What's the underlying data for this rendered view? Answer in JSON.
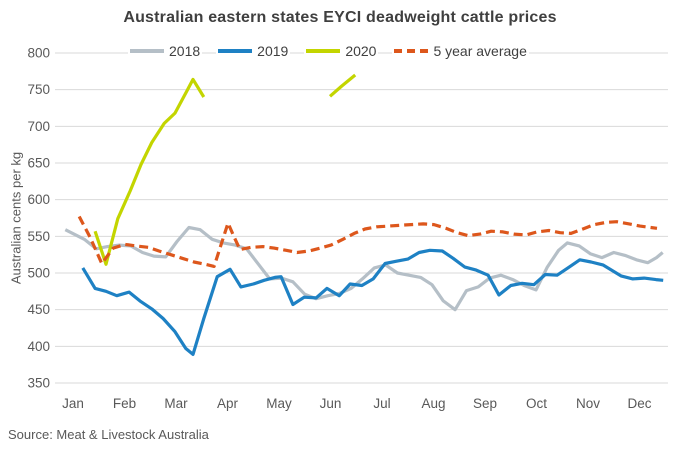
{
  "title": "Australian eastern states EYCI deadweight cattle prices",
  "source": "Source: Meat & Livestock Australia",
  "colors": {
    "series_2018": "#b5bfc7",
    "series_2019": "#1e81c4",
    "series_2020": "#c3d500",
    "five_year_avg": "#dd571c",
    "gridline": "#d9d9d9",
    "axis_text": "#595959",
    "title_text": "#3f3f3f"
  },
  "chart_data": {
    "type": "line",
    "title": "Australian eastern states EYCI deadweight cattle prices",
    "xlabel": "",
    "ylabel": "Australian cents per kg",
    "ylim": [
      350,
      800
    ],
    "yticks": [
      350,
      400,
      450,
      500,
      550,
      600,
      650,
      700,
      750,
      800
    ],
    "xticklabels": [
      "Jan",
      "Feb",
      "Mar",
      "Apr",
      "May",
      "Jun",
      "Jul",
      "Aug",
      "Sep",
      "Oct",
      "Nov",
      "Dec"
    ],
    "grid": "horizontal",
    "legend_position": "top",
    "x_unit": "month index, Jan=0 through Dec=11, weekly resolution",
    "y_unit": "Australian cents per kg",
    "series": [
      {
        "name": "2018",
        "color": "#b5bfc7",
        "dash": "solid",
        "segments": [
          [
            [
              -0.15,
              559
            ],
            [
              0.22,
              546
            ],
            [
              0.45,
              533
            ],
            [
              0.67,
              536
            ],
            [
              0.9,
              538
            ],
            [
              1.12,
              537
            ],
            [
              1.35,
              528
            ],
            [
              1.57,
              523
            ],
            [
              1.8,
              522
            ],
            [
              2.02,
              543
            ],
            [
              2.25,
              562
            ],
            [
              2.47,
              559
            ],
            [
              2.7,
              546
            ],
            [
              2.92,
              541
            ],
            [
              3.15,
              538
            ],
            [
              3.37,
              533
            ],
            [
              3.6,
              512
            ],
            [
              3.82,
              492
            ],
            [
              4.05,
              493
            ],
            [
              4.27,
              488
            ],
            [
              4.5,
              471
            ],
            [
              4.72,
              465
            ],
            [
              4.95,
              469
            ],
            [
              5.17,
              472
            ],
            [
              5.4,
              479
            ],
            [
              5.62,
              492
            ],
            [
              5.85,
              507
            ],
            [
              6.07,
              511
            ],
            [
              6.3,
              500
            ],
            [
              6.52,
              497
            ],
            [
              6.75,
              494
            ],
            [
              6.97,
              484
            ],
            [
              7.19,
              462
            ],
            [
              7.42,
              450
            ],
            [
              7.64,
              476
            ],
            [
              7.87,
              481
            ],
            [
              8.09,
              493
            ],
            [
              8.31,
              497
            ],
            [
              8.54,
              491
            ],
            [
              8.76,
              483
            ],
            [
              8.99,
              477
            ],
            [
              9.21,
              508
            ],
            [
              9.43,
              531
            ],
            [
              9.6,
              541
            ],
            [
              9.83,
              537
            ],
            [
              10.05,
              526
            ],
            [
              10.27,
              521
            ],
            [
              10.5,
              528
            ],
            [
              10.72,
              524
            ],
            [
              10.94,
              518
            ],
            [
              11.16,
              514
            ],
            [
              11.33,
              521
            ],
            [
              11.45,
              528
            ]
          ]
        ]
      },
      {
        "name": "2019",
        "color": "#1e81c4",
        "dash": "solid",
        "segments": [
          [
            [
              0.19,
              507
            ],
            [
              0.43,
              479
            ],
            [
              0.64,
              475
            ],
            [
              0.85,
              469
            ],
            [
              1.09,
              474
            ],
            [
              1.3,
              462
            ],
            [
              1.53,
              451
            ],
            [
              1.75,
              438
            ],
            [
              1.98,
              420
            ],
            [
              2.19,
              397
            ],
            [
              2.33,
              389
            ],
            [
              2.54,
              438
            ],
            [
              2.8,
              495
            ],
            [
              3.05,
              505
            ],
            [
              3.26,
              481
            ],
            [
              3.5,
              485
            ],
            [
              3.71,
              490
            ],
            [
              3.92,
              494
            ],
            [
              4.04,
              495
            ],
            [
              4.27,
              457
            ],
            [
              4.49,
              467
            ],
            [
              4.72,
              466
            ],
            [
              4.93,
              479
            ],
            [
              5.17,
              469
            ],
            [
              5.38,
              485
            ],
            [
              5.61,
              483
            ],
            [
              5.83,
              492
            ],
            [
              6.06,
              513
            ],
            [
              6.27,
              516
            ],
            [
              6.5,
              519
            ],
            [
              6.72,
              528
            ],
            [
              6.93,
              531
            ],
            [
              7.17,
              530
            ],
            [
              7.38,
              520
            ],
            [
              7.61,
              508
            ],
            [
              7.83,
              504
            ],
            [
              8.06,
              497
            ],
            [
              8.27,
              470
            ],
            [
              8.5,
              483
            ],
            [
              8.72,
              486
            ],
            [
              8.95,
              484
            ],
            [
              9.17,
              498
            ],
            [
              9.4,
              497
            ],
            [
              9.61,
              507
            ],
            [
              9.84,
              518
            ],
            [
              10.06,
              515
            ],
            [
              10.29,
              511
            ],
            [
              10.5,
              502
            ],
            [
              10.64,
              496
            ],
            [
              10.87,
              492
            ],
            [
              11.09,
              493
            ],
            [
              11.32,
              491
            ],
            [
              11.46,
              490
            ]
          ]
        ]
      },
      {
        "name": "2020",
        "color": "#c3d500",
        "dash": "solid",
        "segments": [
          [
            [
              0.43,
              557
            ],
            [
              0.64,
              512
            ],
            [
              0.87,
              574
            ],
            [
              1.11,
              612
            ],
            [
              1.32,
              648
            ],
            [
              1.53,
              678
            ],
            [
              1.77,
              704
            ],
            [
              1.98,
              718
            ],
            [
              2.21,
              748
            ],
            [
              2.33,
              764
            ],
            [
              2.54,
              740
            ]
          ],
          [
            [
              4.99,
              741
            ],
            [
              5.22,
              755
            ],
            [
              5.48,
              770
            ]
          ]
        ]
      },
      {
        "name": "5 year average",
        "color": "#dd571c",
        "dash": "dashed",
        "segments": [
          [
            [
              0.12,
              577
            ],
            [
              0.33,
              549
            ],
            [
              0.56,
              513
            ],
            [
              0.78,
              534
            ],
            [
              1.01,
              539
            ],
            [
              1.22,
              537
            ],
            [
              1.46,
              535
            ],
            [
              1.67,
              530
            ],
            [
              1.9,
              525
            ],
            [
              2.12,
              520
            ],
            [
              2.35,
              515
            ],
            [
              2.56,
              512
            ],
            [
              2.74,
              509
            ],
            [
              3.01,
              568
            ],
            [
              3.13,
              549
            ],
            [
              3.24,
              532
            ],
            [
              3.46,
              535
            ],
            [
              3.69,
              536
            ],
            [
              3.9,
              534
            ],
            [
              4.14,
              531
            ],
            [
              4.35,
              528
            ],
            [
              4.58,
              530
            ],
            [
              4.8,
              534
            ],
            [
              5.01,
              538
            ],
            [
              5.24,
              546
            ],
            [
              5.46,
              554
            ],
            [
              5.67,
              560
            ],
            [
              5.9,
              563
            ],
            [
              6.12,
              564
            ],
            [
              6.35,
              565
            ],
            [
              6.56,
              566
            ],
            [
              6.8,
              567
            ],
            [
              7.01,
              566
            ],
            [
              7.24,
              561
            ],
            [
              7.46,
              555
            ],
            [
              7.67,
              551
            ],
            [
              7.9,
              553
            ],
            [
              8.12,
              557
            ],
            [
              8.35,
              556
            ],
            [
              8.56,
              553
            ],
            [
              8.8,
              552
            ],
            [
              9.01,
              556
            ],
            [
              9.24,
              558
            ],
            [
              9.46,
              555
            ],
            [
              9.67,
              554
            ],
            [
              9.9,
              560
            ],
            [
              10.12,
              566
            ],
            [
              10.35,
              569
            ],
            [
              10.56,
              570
            ],
            [
              10.8,
              567
            ],
            [
              11.01,
              564
            ],
            [
              11.22,
              562
            ],
            [
              11.34,
              561
            ]
          ]
        ]
      }
    ]
  }
}
